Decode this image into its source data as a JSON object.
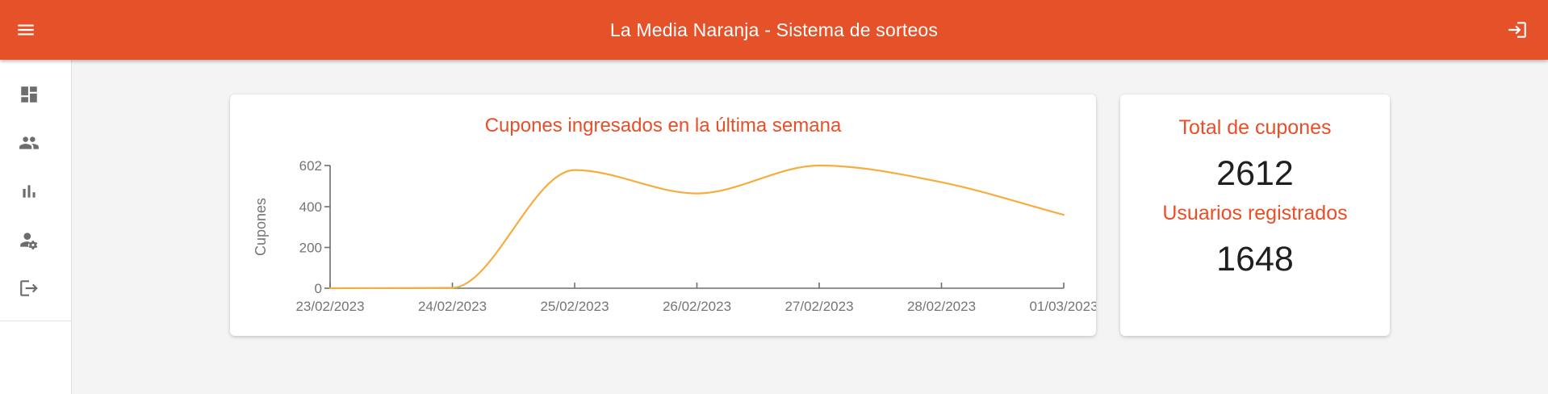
{
  "app_bar": {
    "title": "La Media Naranja - Sistema de sorteos",
    "menu_icon": "menu-icon",
    "login_icon": "login-icon"
  },
  "sidebar": {
    "items": [
      {
        "icon": "dashboard-icon"
      },
      {
        "icon": "people-icon"
      },
      {
        "icon": "bar-chart-icon"
      },
      {
        "icon": "manage-accounts-icon"
      },
      {
        "icon": "logout-icon"
      }
    ]
  },
  "chart_data": {
    "type": "line",
    "title": "Cupones ingresados en la última semana",
    "xlabel": "",
    "ylabel": "Cupones",
    "x": [
      "23/02/2023",
      "24/02/2023",
      "25/02/2023",
      "26/02/2023",
      "27/02/2023",
      "28/02/2023",
      "01/03/2023"
    ],
    "values": [
      0,
      2,
      580,
      465,
      602,
      520,
      360
    ],
    "y_ticks": [
      0,
      200,
      400,
      602
    ],
    "ylim": [
      0,
      602
    ],
    "grid": false,
    "legend": false,
    "line_color": "#f6ad3e",
    "axis_color": "#6e6e6e",
    "tick_text_color": "#757575"
  },
  "stats": [
    {
      "label": "Total de cupones",
      "value": "2612"
    },
    {
      "label": "Usuarios registrados",
      "value": "1648"
    }
  ],
  "colors": {
    "app_bar": "#e5522a",
    "accent_text": "#e94e26",
    "value_text": "#1f1f1f",
    "background": "#f4f4f4",
    "sidebar_icon": "#6d6d6d"
  }
}
